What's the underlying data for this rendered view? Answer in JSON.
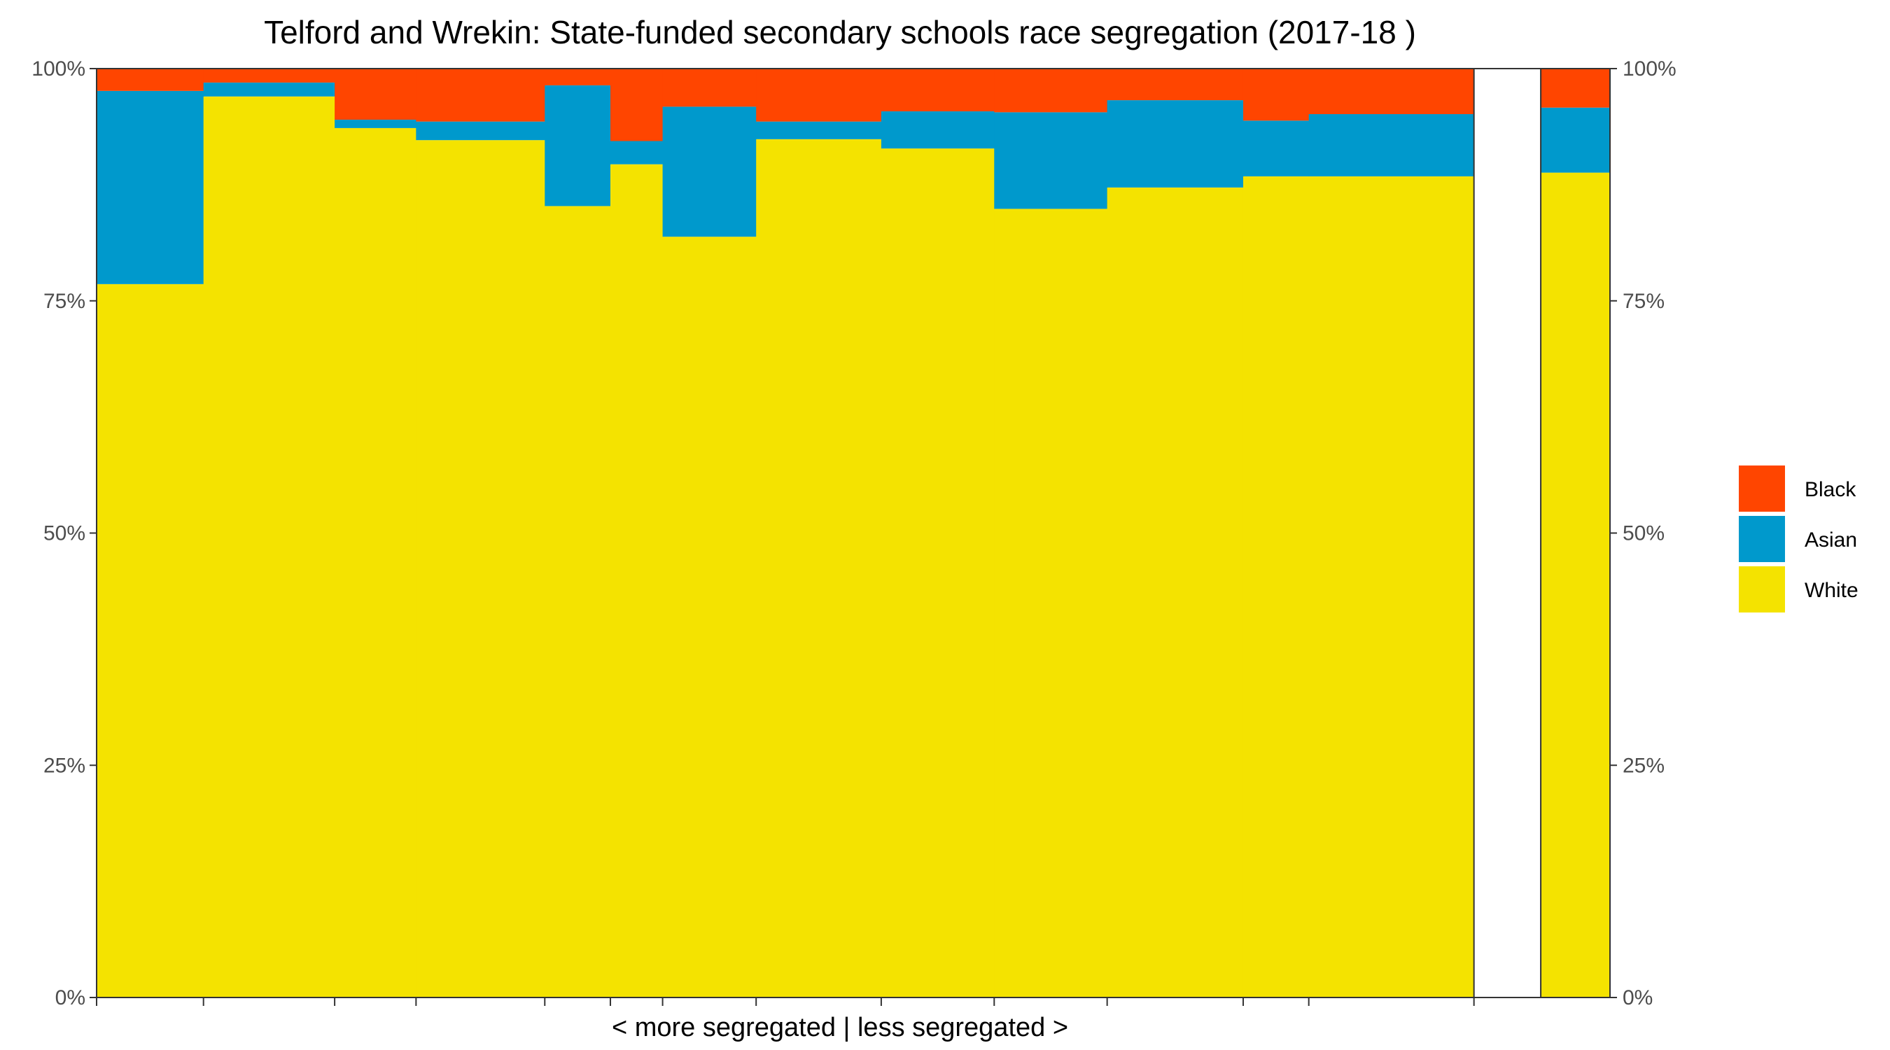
{
  "chart_data": {
    "type": "bar",
    "title": "Telford and Wrekin: State-funded secondary schools race segregation (2017-18 )",
    "xlabel": "< more segregated | less segregated >",
    "ylabel": "",
    "ylim": [
      0,
      1
    ],
    "y_ticks": [
      "0%",
      "25%",
      "50%",
      "75%",
      "100%"
    ],
    "y_tick_values": [
      0,
      0.25,
      0.5,
      0.75,
      1
    ],
    "bar_widths_relative": [
      88,
      108,
      67,
      106,
      54,
      43,
      77,
      103,
      93,
      93,
      112,
      54,
      136
    ],
    "summary_bar_width_relative": 57,
    "gap_width_relative": 55,
    "series": [
      {
        "name": "White",
        "color": "#F4E300",
        "values": [
          0.768,
          0.97,
          0.936,
          0.923,
          0.852,
          0.897,
          0.819,
          0.924,
          0.914,
          0.849,
          0.872,
          0.884,
          0.884
        ]
      },
      {
        "name": "Asian",
        "color": "#0099CC",
        "values": [
          0.208,
          0.015,
          0.009,
          0.02,
          0.13,
          0.025,
          0.14,
          0.019,
          0.04,
          0.104,
          0.094,
          0.06,
          0.067
        ]
      },
      {
        "name": "Black",
        "color": "#FF4500",
        "values": [
          0.024,
          0.015,
          0.055,
          0.057,
          0.018,
          0.078,
          0.041,
          0.057,
          0.046,
          0.047,
          0.034,
          0.056,
          0.049
        ]
      }
    ],
    "summary_bar": {
      "values": [
        0.888,
        0.07,
        0.042
      ]
    },
    "legend": {
      "placement": "right",
      "entries": [
        {
          "label": "Black",
          "color": "#FF4500"
        },
        {
          "label": "Asian",
          "color": "#0099CC"
        },
        {
          "label": "White",
          "color": "#F4E300"
        }
      ]
    },
    "grid": false
  }
}
